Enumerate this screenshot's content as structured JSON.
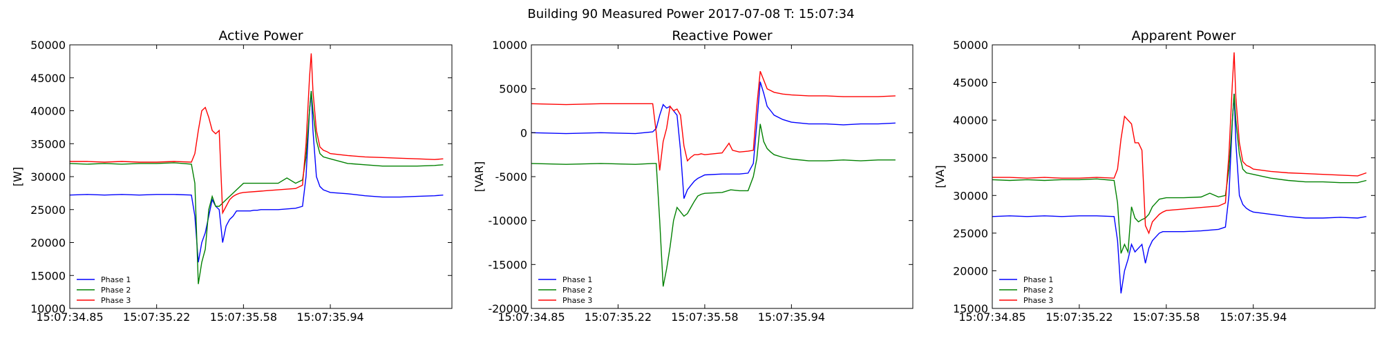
{
  "figure": {
    "suptitle": "Building 90 Measured Power 2017-07-08 T: 15:07:34"
  },
  "chart_data": [
    {
      "type": "line",
      "title": "Active Power",
      "xlabel": "",
      "ylabel": "[W]",
      "xlim": [
        0,
        220
      ],
      "ylim": [
        10000,
        50000
      ],
      "yticks": [
        10000,
        15000,
        20000,
        25000,
        30000,
        35000,
        40000,
        45000,
        50000
      ],
      "xtick_labels": [
        "15:07:34.85",
        "15:07:35.22",
        "15:07:35.58",
        "15:07:35.94"
      ],
      "xtick_positions": [
        0,
        50,
        100,
        150
      ],
      "legend": "lower-left",
      "grid": false,
      "series": [
        {
          "name": "Phase 1",
          "color": "#0000ff",
          "x": [
            0,
            10,
            20,
            30,
            40,
            50,
            60,
            70,
            72,
            74,
            76,
            78,
            80,
            82,
            84,
            86,
            88,
            90,
            92,
            94,
            96,
            98,
            100,
            102,
            104,
            106,
            108,
            110,
            120,
            130,
            134,
            136,
            138,
            139,
            140,
            142,
            144,
            146,
            148,
            150,
            160,
            170,
            180,
            190,
            200,
            210,
            215
          ],
          "y": [
            27200,
            27300,
            27200,
            27300,
            27200,
            27300,
            27300,
            27200,
            24000,
            17000,
            20000,
            21500,
            24000,
            26500,
            25500,
            25000,
            20000,
            22500,
            23500,
            24000,
            24800,
            24800,
            24800,
            24800,
            24800,
            24900,
            24900,
            25000,
            25000,
            25200,
            25500,
            30000,
            40000,
            43000,
            37000,
            30000,
            28500,
            28000,
            27800,
            27600,
            27400,
            27100,
            26900,
            26900,
            27000,
            27100,
            27200
          ]
        },
        {
          "name": "Phase 2",
          "color": "#008000",
          "x": [
            0,
            10,
            20,
            30,
            40,
            50,
            60,
            70,
            72,
            74,
            76,
            78,
            80,
            82,
            84,
            86,
            88,
            90,
            92,
            94,
            96,
            100,
            110,
            120,
            125,
            130,
            134,
            136,
            138,
            139,
            140,
            142,
            144,
            146,
            150,
            160,
            170,
            180,
            190,
            200,
            210,
            215
          ],
          "y": [
            32000,
            31900,
            32000,
            31900,
            32000,
            32000,
            32100,
            31900,
            29000,
            13700,
            17000,
            19000,
            25000,
            27000,
            25500,
            25500,
            26000,
            26500,
            27000,
            27500,
            28000,
            29000,
            29000,
            29000,
            29800,
            29000,
            29500,
            33000,
            40000,
            43000,
            40000,
            35500,
            33500,
            33000,
            32700,
            32000,
            31800,
            31600,
            31600,
            31600,
            31700,
            31800
          ]
        },
        {
          "name": "Phase 3",
          "color": "#ff0000",
          "x": [
            0,
            10,
            20,
            30,
            40,
            50,
            60,
            70,
            72,
            74,
            76,
            78,
            80,
            82,
            84,
            86,
            88,
            90,
            92,
            94,
            96,
            98,
            100,
            110,
            120,
            130,
            134,
            136,
            138,
            139,
            140,
            142,
            144,
            146,
            148,
            150,
            160,
            170,
            180,
            190,
            200,
            210,
            215
          ],
          "y": [
            32300,
            32300,
            32200,
            32300,
            32200,
            32200,
            32300,
            32200,
            33500,
            37000,
            40000,
            40500,
            39000,
            37000,
            36500,
            37000,
            24500,
            25500,
            26500,
            27000,
            27300,
            27500,
            27600,
            27800,
            28000,
            28200,
            28700,
            35000,
            45000,
            48700,
            43000,
            37000,
            34500,
            34000,
            33800,
            33500,
            33200,
            33000,
            32900,
            32800,
            32700,
            32600,
            32700
          ]
        }
      ]
    },
    {
      "type": "line",
      "title": "Reactive Power",
      "xlabel": "",
      "ylabel": "[VAR]",
      "xlim": [
        0,
        220
      ],
      "ylim": [
        -20000,
        10000
      ],
      "yticks": [
        -20000,
        -15000,
        -10000,
        -5000,
        0,
        5000,
        10000
      ],
      "xtick_labels": [
        "15:07:34.85",
        "15:07:35.22",
        "15:07:35.58",
        "15:07:35.94"
      ],
      "xtick_positions": [
        0,
        50,
        100,
        150
      ],
      "legend": "lower-left",
      "grid": false,
      "series": [
        {
          "name": "Phase 1",
          "color": "#0000ff",
          "x": [
            0,
            20,
            40,
            60,
            70,
            72,
            74,
            76,
            78,
            80,
            82,
            84,
            86,
            88,
            90,
            92,
            94,
            96,
            98,
            100,
            110,
            120,
            125,
            128,
            130,
            132,
            134,
            136,
            138,
            140,
            145,
            150,
            160,
            170,
            180,
            190,
            200,
            210
          ],
          "y": [
            0,
            -100,
            0,
            -100,
            100,
            500,
            2000,
            3200,
            2800,
            3000,
            2500,
            2000,
            -2000,
            -7500,
            -6500,
            -6000,
            -5500,
            -5200,
            -5000,
            -4800,
            -4700,
            -4700,
            -4600,
            -3500,
            1000,
            5800,
            4500,
            3000,
            2500,
            2000,
            1500,
            1200,
            1000,
            1000,
            900,
            1000,
            1000,
            1100
          ]
        },
        {
          "name": "Phase 2",
          "color": "#008000",
          "x": [
            0,
            20,
            40,
            60,
            70,
            72,
            74,
            76,
            78,
            80,
            82,
            84,
            86,
            88,
            90,
            92,
            94,
            96,
            98,
            100,
            110,
            115,
            120,
            125,
            128,
            130,
            132,
            134,
            136,
            138,
            140,
            145,
            150,
            160,
            170,
            180,
            190,
            200,
            210
          ],
          "y": [
            -3500,
            -3600,
            -3500,
            -3600,
            -3500,
            -3500,
            -10000,
            -17500,
            -15500,
            -13000,
            -10000,
            -8500,
            -9000,
            -9500,
            -9200,
            -8500,
            -7800,
            -7200,
            -7000,
            -6900,
            -6800,
            -6500,
            -6600,
            -6600,
            -5000,
            -3000,
            1000,
            -1000,
            -1800,
            -2200,
            -2500,
            -2800,
            -3000,
            -3200,
            -3200,
            -3100,
            -3200,
            -3100,
            -3100
          ]
        },
        {
          "name": "Phase 3",
          "color": "#ff0000",
          "x": [
            0,
            20,
            40,
            60,
            70,
            72,
            74,
            76,
            78,
            80,
            82,
            84,
            86,
            88,
            90,
            92,
            94,
            96,
            98,
            100,
            110,
            114,
            116,
            120,
            125,
            128,
            130,
            132,
            134,
            136,
            138,
            140,
            145,
            150,
            160,
            170,
            180,
            190,
            200,
            210
          ],
          "y": [
            3300,
            3200,
            3300,
            3300,
            3300,
            0,
            -4300,
            -1000,
            500,
            3000,
            2500,
            2700,
            2000,
            -1500,
            -3200,
            -2800,
            -2500,
            -2500,
            -2400,
            -2500,
            -2300,
            -1200,
            -2000,
            -2200,
            -2100,
            -2000,
            3000,
            7000,
            6000,
            5000,
            4800,
            4600,
            4400,
            4300,
            4200,
            4200,
            4100,
            4100,
            4100,
            4200
          ]
        }
      ]
    },
    {
      "type": "line",
      "title": "Apparent Power",
      "xlabel": "",
      "ylabel": "[VA]",
      "xlim": [
        0,
        220
      ],
      "ylim": [
        15000,
        50000
      ],
      "yticks": [
        15000,
        20000,
        25000,
        30000,
        35000,
        40000,
        45000,
        50000
      ],
      "xtick_labels": [
        "15:07:34.85",
        "15:07:35.22",
        "15:07:35.58",
        "15:07:35.94"
      ],
      "xtick_positions": [
        0,
        50,
        100,
        150
      ],
      "legend": "lower-left",
      "grid": false,
      "series": [
        {
          "name": "Phase 1",
          "color": "#0000ff",
          "x": [
            0,
            10,
            20,
            30,
            40,
            50,
            60,
            70,
            72,
            74,
            76,
            78,
            80,
            82,
            84,
            86,
            88,
            90,
            92,
            94,
            96,
            98,
            100,
            110,
            120,
            130,
            134,
            136,
            138,
            139,
            140,
            142,
            144,
            146,
            148,
            150,
            160,
            170,
            180,
            190,
            200,
            210,
            215
          ],
          "y": [
            27200,
            27300,
            27200,
            27300,
            27200,
            27300,
            27300,
            27200,
            24000,
            17000,
            20000,
            21500,
            23500,
            22500,
            23000,
            23500,
            21000,
            23000,
            24000,
            24500,
            25000,
            25200,
            25200,
            25200,
            25300,
            25500,
            25800,
            30000,
            40000,
            43500,
            37000,
            30000,
            28800,
            28300,
            28000,
            27800,
            27500,
            27200,
            27000,
            27000,
            27100,
            27000,
            27200
          ]
        },
        {
          "name": "Phase 2",
          "color": "#008000",
          "x": [
            0,
            10,
            20,
            30,
            40,
            50,
            60,
            70,
            72,
            74,
            76,
            78,
            80,
            82,
            84,
            86,
            88,
            90,
            92,
            94,
            96,
            100,
            110,
            120,
            125,
            130,
            134,
            136,
            138,
            139,
            140,
            142,
            144,
            146,
            150,
            160,
            170,
            180,
            190,
            200,
            210,
            215
          ],
          "y": [
            32100,
            32000,
            32100,
            32000,
            32100,
            32100,
            32200,
            32000,
            29000,
            22300,
            23500,
            22500,
            28500,
            27000,
            26500,
            26800,
            27000,
            27500,
            28500,
            29000,
            29500,
            29700,
            29700,
            29800,
            30300,
            29800,
            30000,
            33500,
            40000,
            43500,
            40000,
            35500,
            33500,
            33000,
            32800,
            32300,
            32000,
            31800,
            31800,
            31700,
            31700,
            32000
          ]
        },
        {
          "name": "Phase 3",
          "color": "#ff0000",
          "x": [
            0,
            10,
            20,
            30,
            40,
            50,
            60,
            70,
            72,
            74,
            76,
            78,
            80,
            82,
            84,
            86,
            88,
            90,
            92,
            94,
            96,
            98,
            100,
            110,
            120,
            130,
            134,
            136,
            138,
            139,
            140,
            142,
            144,
            146,
            148,
            150,
            160,
            170,
            180,
            190,
            200,
            210,
            215
          ],
          "y": [
            32400,
            32400,
            32300,
            32400,
            32300,
            32300,
            32400,
            32300,
            33500,
            37500,
            40500,
            40000,
            39500,
            37000,
            37000,
            36000,
            26000,
            25000,
            26500,
            27000,
            27500,
            27800,
            28000,
            28200,
            28400,
            28600,
            29000,
            35500,
            45000,
            49000,
            43000,
            37000,
            34500,
            34000,
            33800,
            33500,
            33200,
            33000,
            32900,
            32800,
            32700,
            32600,
            33000
          ]
        }
      ]
    }
  ]
}
